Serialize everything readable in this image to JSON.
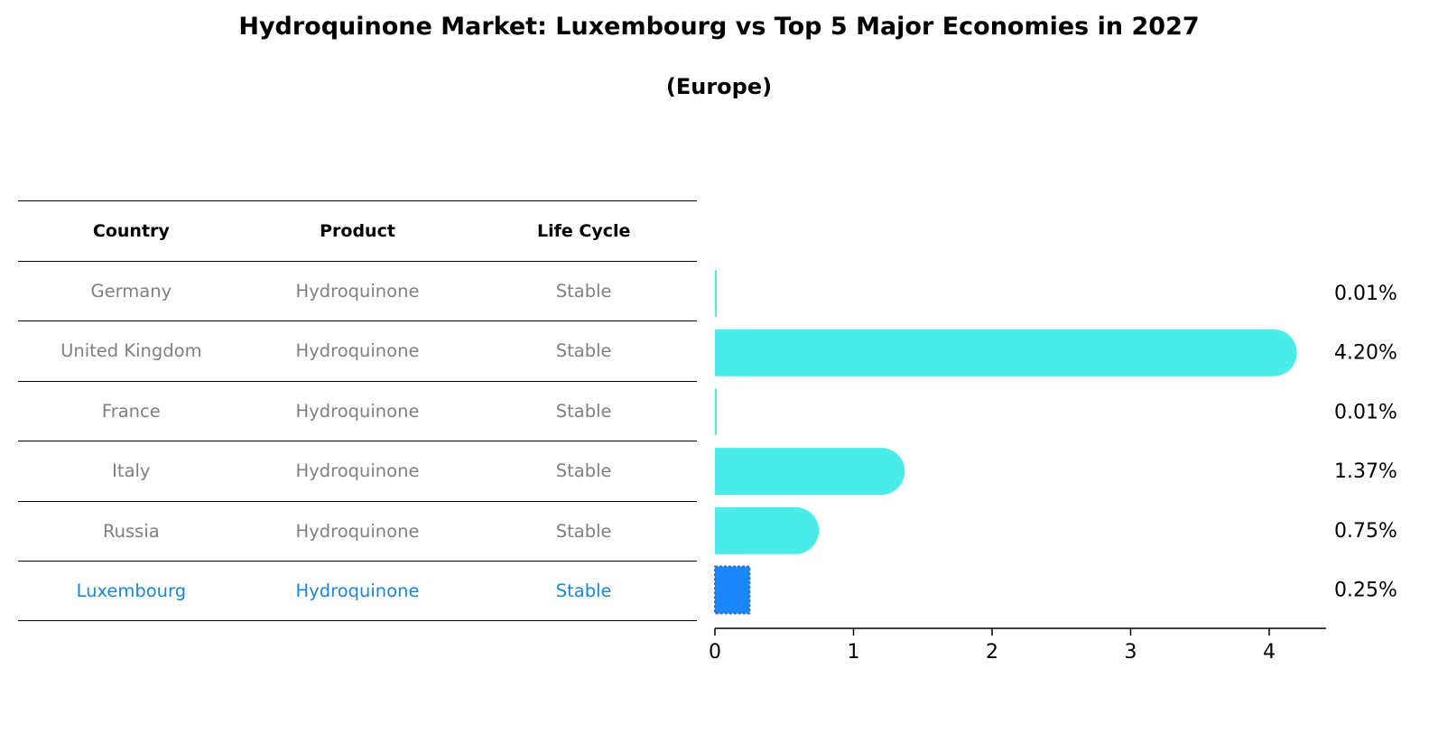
{
  "title": "Hydroquinone Market: Luxembourg vs Top 5 Major Economies in 2027",
  "subtitle": "(Europe)",
  "table": {
    "headers": [
      "Country",
      "Product",
      "Life Cycle"
    ],
    "rows": [
      [
        "Germany",
        "Hydroquinone",
        "Stable"
      ],
      [
        "United Kingdom",
        "Hydroquinone",
        "Stable"
      ],
      [
        "France",
        "Hydroquinone",
        "Stable"
      ],
      [
        "Italy",
        "Hydroquinone",
        "Stable"
      ],
      [
        "Russia",
        "Hydroquinone",
        "Stable"
      ],
      [
        "Luxembourg",
        "Hydroquinone",
        "Stable"
      ]
    ],
    "highlight_row": "Luxembourg"
  },
  "chart_data": {
    "type": "bar",
    "orientation": "horizontal",
    "categories": [
      "Germany",
      "United Kingdom",
      "France",
      "Italy",
      "Russia",
      "Luxembourg"
    ],
    "values": [
      0.01,
      4.2,
      0.01,
      1.37,
      0.75,
      0.25
    ],
    "value_labels": [
      "0.01%",
      "4.20%",
      "0.01%",
      "1.37%",
      "0.75%",
      "0.25%"
    ],
    "highlight": "Luxembourg",
    "xlim": [
      0,
      4.4
    ],
    "xticks": [
      "0",
      "1",
      "2",
      "3",
      "4"
    ],
    "colors": {
      "bar": "#4aece9",
      "highlight": "#1a86f8",
      "highlight_border": "#2b6fc4"
    }
  }
}
